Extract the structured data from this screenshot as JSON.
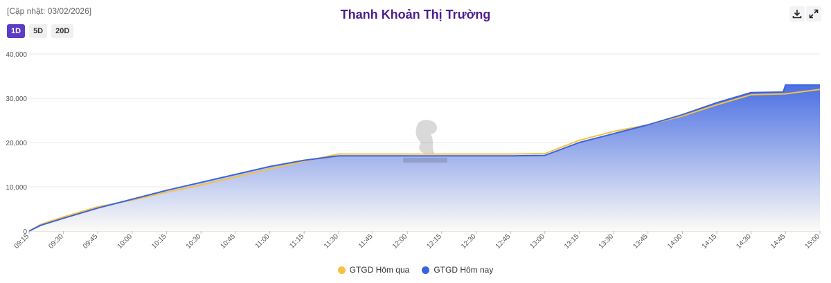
{
  "header": {
    "updated": "[Cập nhật: 03/02/2026]",
    "title": "Thanh Khoản Thị Trường",
    "ranges": [
      {
        "label": "1D",
        "active": true
      },
      {
        "label": "5D",
        "active": false
      },
      {
        "label": "20D",
        "active": false
      }
    ],
    "icons": [
      "download-icon",
      "expand-icon"
    ]
  },
  "colors": {
    "yesterday": "#f5c142",
    "today": "#3b63e0",
    "area_top": "#3b63e0",
    "area_bottom": "#fdfbf6",
    "grid": "#e8e8e8",
    "axis_text": "#555555"
  },
  "chart_data": {
    "type": "area",
    "ylim": [
      0,
      40000
    ],
    "yticks": [
      "0",
      "10,000",
      "20,000",
      "30,000",
      "40,000"
    ],
    "yvalues": [
      0,
      10000,
      20000,
      30000,
      40000
    ],
    "xticks": [
      "09:15",
      "09:30",
      "09:45",
      "10:00",
      "10:15",
      "10:30",
      "10:45",
      "11:00",
      "11:15",
      "11:30",
      "11:45",
      "12:00",
      "12:15",
      "12:30",
      "12:45",
      "13:00",
      "13:15",
      "13:30",
      "13:45",
      "14:00",
      "14:15",
      "14:30",
      "14:45",
      "15:00"
    ],
    "grid": true,
    "legend_position": "bottom",
    "series": [
      {
        "name": "GTGD Hôm qua",
        "color": "#f5c142",
        "points": [
          [
            "09:15",
            0
          ],
          [
            "09:20",
            1500
          ],
          [
            "09:30",
            3200
          ],
          [
            "09:45",
            5500
          ],
          [
            "10:00",
            7000
          ],
          [
            "10:15",
            8800
          ],
          [
            "10:30",
            10400
          ],
          [
            "10:45",
            12200
          ],
          [
            "11:00",
            14000
          ],
          [
            "11:15",
            15800
          ],
          [
            "11:30",
            17400
          ],
          [
            "11:45",
            17400
          ],
          [
            "12:00",
            17400
          ],
          [
            "12:15",
            17400
          ],
          [
            "12:30",
            17400
          ],
          [
            "12:45",
            17400
          ],
          [
            "13:00",
            17500
          ],
          [
            "13:15",
            20500
          ],
          [
            "13:30",
            22500
          ],
          [
            "13:45",
            24000
          ],
          [
            "14:00",
            26000
          ],
          [
            "14:15",
            28500
          ],
          [
            "14:30",
            30800
          ],
          [
            "14:45",
            31000
          ],
          [
            "15:00",
            32000
          ]
        ]
      },
      {
        "name": "GTGD Hôm nay",
        "color": "#3b63e0",
        "points": [
          [
            "09:15",
            0
          ],
          [
            "09:20",
            1300
          ],
          [
            "09:30",
            2900
          ],
          [
            "09:45",
            5200
          ],
          [
            "10:00",
            7200
          ],
          [
            "10:15",
            9200
          ],
          [
            "10:30",
            11000
          ],
          [
            "10:45",
            12800
          ],
          [
            "11:00",
            14600
          ],
          [
            "11:15",
            16000
          ],
          [
            "11:30",
            17000
          ],
          [
            "11:45",
            17000
          ],
          [
            "12:00",
            17000
          ],
          [
            "12:15",
            17000
          ],
          [
            "12:30",
            17000
          ],
          [
            "12:45",
            17000
          ],
          [
            "13:00",
            17100
          ],
          [
            "13:15",
            20000
          ],
          [
            "13:30",
            22000
          ],
          [
            "13:45",
            24000
          ],
          [
            "14:00",
            26300
          ],
          [
            "14:15",
            29000
          ],
          [
            "14:30",
            31300
          ],
          [
            "14:44",
            31400
          ],
          [
            "14:45",
            33000
          ],
          [
            "15:00",
            33000
          ]
        ]
      }
    ]
  }
}
